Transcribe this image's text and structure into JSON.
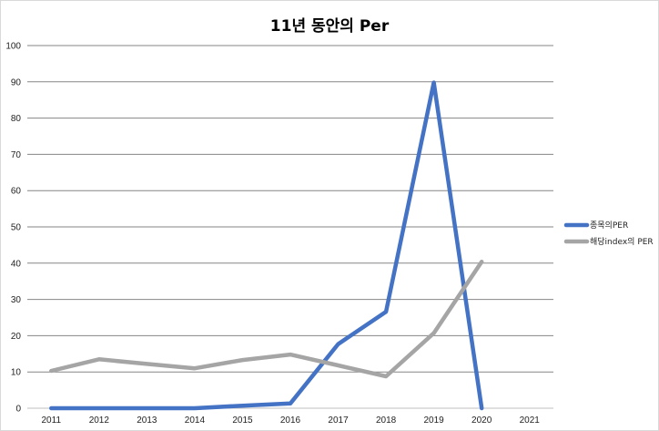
{
  "chart_data": {
    "type": "line",
    "title": "11년 동안의 Per",
    "xlabel": "",
    "ylabel": "",
    "categories": [
      "2011",
      "2012",
      "2013",
      "2014",
      "2015",
      "2016",
      "2017",
      "2018",
      "2019",
      "2020",
      "2021"
    ],
    "ylim": [
      0,
      100
    ],
    "yticks": [
      0,
      10,
      20,
      30,
      40,
      50,
      60,
      70,
      80,
      90,
      100
    ],
    "grid": true,
    "legend_position": "right",
    "series": [
      {
        "name": "종목의PER",
        "color": "#4472c4",
        "values": [
          0,
          0,
          0,
          0,
          0.7,
          1.3,
          17.7,
          26.6,
          89.8,
          0,
          null
        ]
      },
      {
        "name": "해당index의 PER",
        "color": "#a5a5a5",
        "values": [
          10.3,
          13.5,
          12.2,
          11.0,
          13.3,
          14.8,
          11.8,
          8.8,
          20.7,
          40.4,
          null
        ]
      }
    ]
  }
}
